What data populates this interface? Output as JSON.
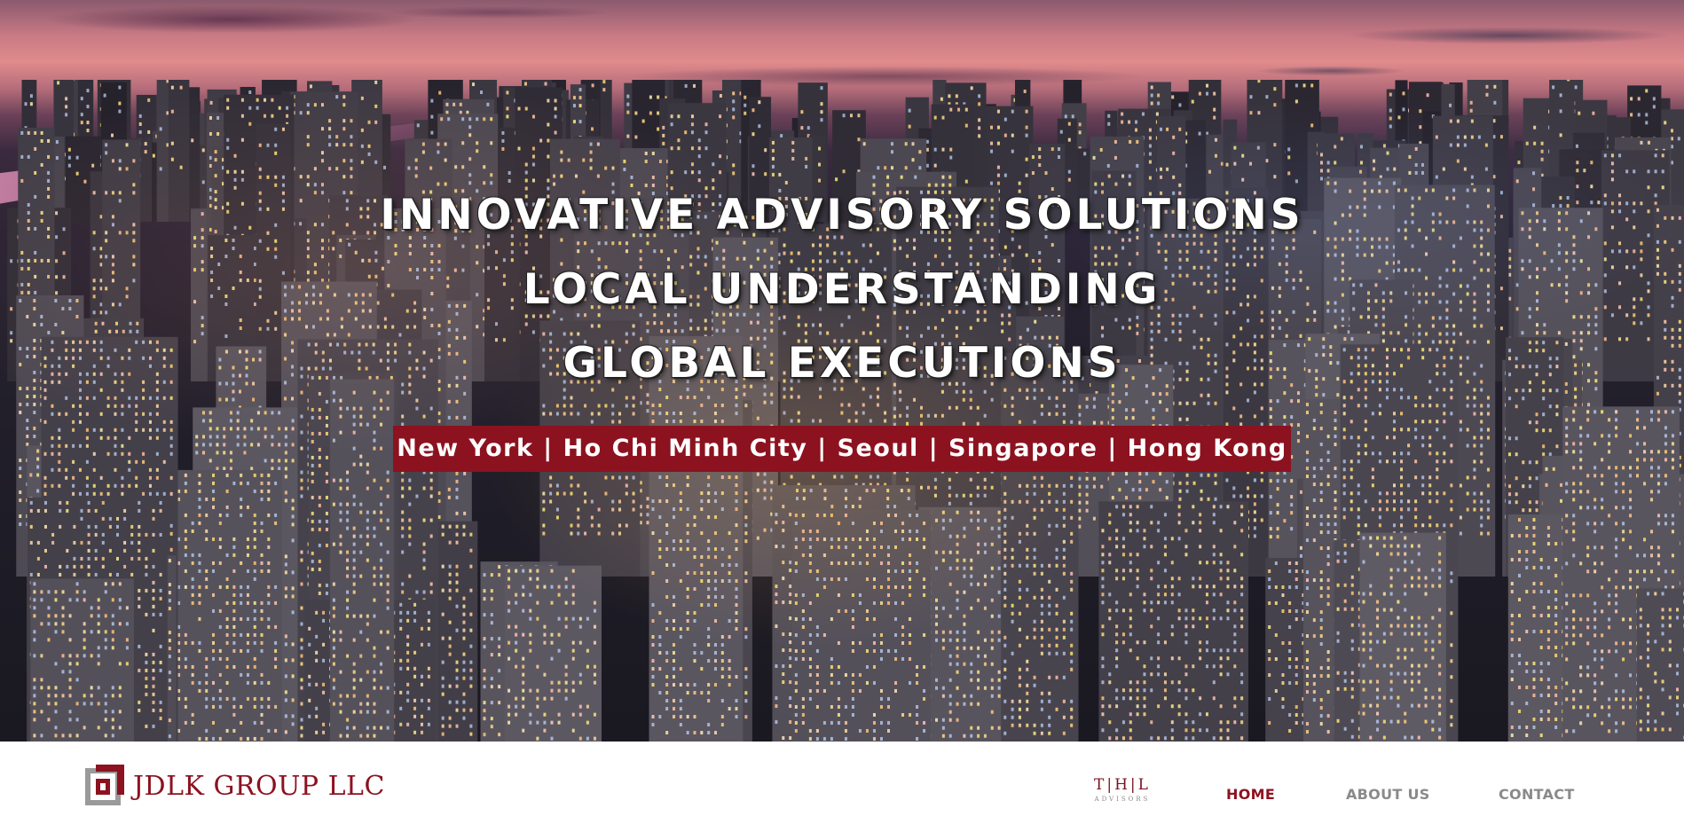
{
  "hero": {
    "headline_1": "INNOVATIVE ADVISORY SOLUTIONS",
    "headline_2": "LOCAL UNDERSTANDING",
    "headline_3": "GLOBAL EXECUTIONS",
    "offices": "New York | Ho Chi Minh City | Seoul | Singapore | Hong Kong",
    "office_bar_color": "#8c1220"
  },
  "nav": {
    "brand": "JDLK GROUP LLC",
    "partner_logo_letters": "T|H|L",
    "partner_logo_sub": "ADVISORS",
    "links": [
      {
        "label": "HOME",
        "active": true
      },
      {
        "label": "ABOUT US",
        "active": false
      },
      {
        "label": "CONTACT",
        "active": false
      }
    ],
    "active_color": "#8c1220",
    "link_color": "#8a8a8a"
  }
}
